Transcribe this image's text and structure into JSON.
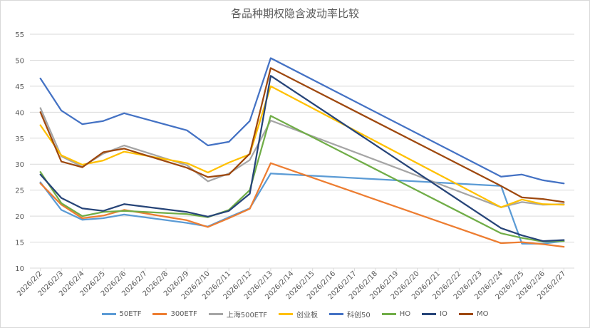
{
  "chart_data": {
    "type": "line",
    "title": "各品种期权隐含波动率比较",
    "xlabel": "",
    "ylabel": "",
    "ylim": [
      10,
      55
    ],
    "yticks": [
      10,
      15,
      20,
      25,
      30,
      35,
      40,
      45,
      50,
      55
    ],
    "grid": true,
    "legend_position": "bottom",
    "x": [
      "2026/2/2",
      "2026/2/3",
      "2026/2/4",
      "2026/2/5",
      "2026/2/6",
      "2026/2/7",
      "2026/2/8",
      "2026/2/9",
      "2026/2/10",
      "2026/2/11",
      "2026/2/12",
      "2026/2/13",
      "2026/2/14",
      "2026/2/15",
      "2026/2/16",
      "2026/2/17",
      "2026/2/18",
      "2026/2/19",
      "2026/2/20",
      "2026/2/21",
      "2026/2/22",
      "2026/2/23",
      "2026/2/24",
      "2026/2/25",
      "2026/2/26",
      "2026/2/27"
    ],
    "series": [
      {
        "name": "50ETF",
        "color": "#5b9bd5",
        "values": [
          26.5,
          21.2,
          19.3,
          19.6,
          20.3,
          null,
          null,
          18.7,
          18.0,
          19.8,
          21.5,
          28.2,
          null,
          null,
          null,
          null,
          null,
          null,
          null,
          null,
          null,
          null,
          25.8,
          14.7,
          14.7,
          15.2
        ]
      },
      {
        "name": "300ETF",
        "color": "#ed7d31",
        "values": [
          26.3,
          22.2,
          19.6,
          20.1,
          21.2,
          null,
          null,
          19.2,
          17.9,
          19.6,
          21.4,
          30.2,
          null,
          null,
          null,
          null,
          null,
          null,
          null,
          null,
          null,
          null,
          14.8,
          15.0,
          14.6,
          14.1
        ]
      },
      {
        "name": "上海500ETF",
        "color": "#a5a5a5",
        "values": [
          40.8,
          31.5,
          29.5,
          32.0,
          33.6,
          null,
          null,
          29.8,
          26.7,
          28.2,
          30.8,
          38.4,
          null,
          null,
          null,
          null,
          null,
          null,
          null,
          null,
          null,
          null,
          21.7,
          22.7,
          22.2,
          22.3
        ]
      },
      {
        "name": "创业板",
        "color": "#ffc000",
        "values": [
          37.5,
          31.7,
          29.9,
          30.7,
          32.4,
          null,
          null,
          30.2,
          28.4,
          30.3,
          31.9,
          45.0,
          null,
          null,
          null,
          null,
          null,
          null,
          null,
          null,
          null,
          null,
          21.7,
          23.2,
          22.3,
          22.2
        ]
      },
      {
        "name": "科创50",
        "color": "#4472c4",
        "values": [
          46.5,
          40.3,
          37.7,
          38.3,
          39.8,
          null,
          null,
          36.5,
          33.6,
          34.3,
          38.3,
          50.4,
          null,
          null,
          null,
          null,
          null,
          null,
          null,
          null,
          null,
          null,
          27.6,
          28.0,
          26.9,
          26.3
        ]
      },
      {
        "name": "HO",
        "color": "#70ad47",
        "values": [
          28.5,
          22.5,
          20.0,
          20.8,
          21.0,
          null,
          null,
          20.4,
          19.8,
          21.2,
          25.0,
          39.3,
          null,
          null,
          null,
          null,
          null,
          null,
          null,
          null,
          null,
          null,
          16.7,
          15.8,
          15.1,
          15.2
        ]
      },
      {
        "name": "IO",
        "color": "#264478",
        "values": [
          28.0,
          23.5,
          21.5,
          21.0,
          22.3,
          null,
          null,
          20.8,
          19.9,
          21.0,
          24.3,
          47.0,
          null,
          null,
          null,
          null,
          null,
          null,
          null,
          null,
          null,
          null,
          17.7,
          16.3,
          15.2,
          15.4
        ]
      },
      {
        "name": "MO",
        "color": "#9e480e",
        "values": [
          40.0,
          30.5,
          29.4,
          32.3,
          33.0,
          null,
          null,
          29.3,
          27.5,
          28.0,
          32.0,
          48.5,
          null,
          null,
          null,
          null,
          null,
          null,
          null,
          null,
          null,
          null,
          25.8,
          23.6,
          23.3,
          22.7
        ]
      }
    ]
  }
}
